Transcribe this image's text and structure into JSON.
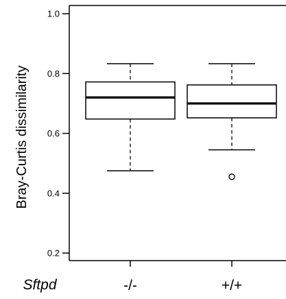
{
  "chart_data": {
    "type": "boxplot",
    "ylabel": "Bray-Curtis dissimilarity",
    "xlabel": "Sftpd",
    "categories": [
      "-/-",
      "+/+"
    ],
    "ylim": [
      0.18,
      1.02
    ],
    "yticks": [
      {
        "value": 0.2,
        "label": "0.2"
      },
      {
        "value": 0.4,
        "label": "0.4"
      },
      {
        "value": 0.6,
        "label": "0.6"
      },
      {
        "value": 0.8,
        "label": "0.8"
      },
      {
        "value": 1.0,
        "label": "1.0"
      }
    ],
    "boxes": [
      {
        "name": "-/-",
        "whisker_low": 0.475,
        "q1": 0.648,
        "median": 0.72,
        "q3": 0.772,
        "whisker_high": 0.833,
        "outliers": []
      },
      {
        "name": "+/+",
        "whisker_low": 0.545,
        "q1": 0.652,
        "median": 0.7,
        "q3": 0.762,
        "whisker_high": 0.833,
        "outliers": [
          0.455
        ]
      }
    ],
    "grid": false,
    "legend": "none"
  }
}
